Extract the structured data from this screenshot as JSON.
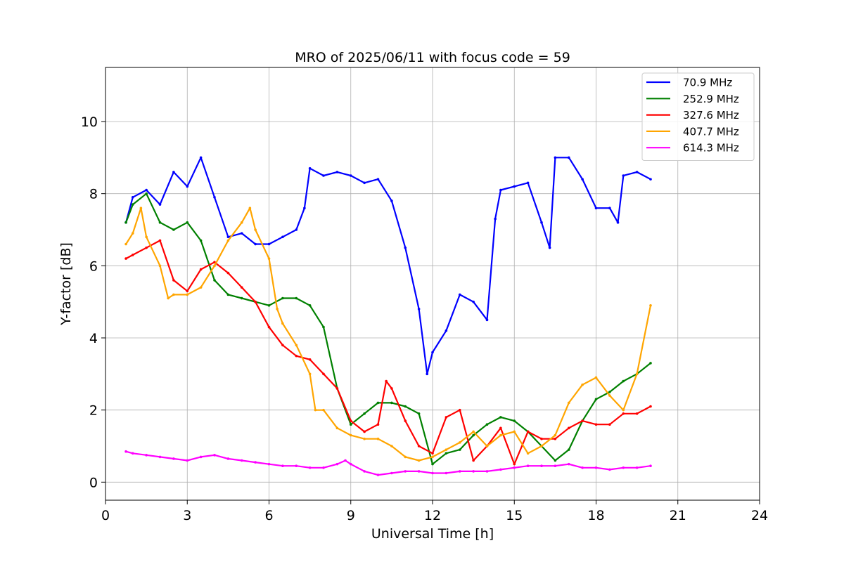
{
  "chart_data": {
    "type": "line",
    "title": "MRO of 2025/06/11 with focus code = 59",
    "xlabel": "Universal Time [h]",
    "ylabel": "Y-factor [dB]",
    "xlim": [
      0,
      24
    ],
    "ylim": [
      -0.5,
      11.5
    ],
    "xticks": [
      0,
      3,
      6,
      9,
      12,
      15,
      18,
      21,
      24
    ],
    "yticks": [
      0,
      2,
      4,
      6,
      8,
      10
    ],
    "grid": true,
    "legend_position": "top-right",
    "series": [
      {
        "name": " 70.9 MHz",
        "color": "#0000ff",
        "x": [
          0.75,
          1.0,
          1.5,
          2.0,
          2.5,
          3.0,
          3.5,
          4.0,
          4.5,
          5.0,
          5.5,
          6.0,
          6.5,
          7.0,
          7.3,
          7.5,
          8.0,
          8.5,
          9.0,
          9.5,
          10.0,
          10.5,
          11.0,
          11.5,
          11.8,
          12.0,
          12.5,
          13.0,
          13.5,
          14.0,
          14.3,
          14.5,
          15.0,
          15.5,
          16.0,
          16.3,
          16.5,
          17.0,
          17.5,
          18.0,
          18.5,
          18.8,
          19.0,
          19.5,
          20.0
        ],
        "values": [
          7.2,
          7.9,
          8.1,
          7.7,
          8.6,
          8.2,
          9.0,
          7.9,
          6.8,
          6.9,
          6.6,
          6.6,
          6.8,
          7.0,
          7.6,
          8.7,
          8.5,
          8.6,
          8.5,
          8.3,
          8.4,
          7.8,
          6.5,
          4.8,
          3.0,
          3.6,
          4.2,
          5.2,
          5.0,
          4.5,
          7.3,
          8.1,
          8.2,
          8.3,
          7.2,
          6.5,
          9.0,
          9.0,
          8.4,
          7.6,
          7.6,
          7.2,
          8.5,
          8.6,
          8.4
        ]
      },
      {
        "name": "252.9 MHz",
        "color": "#008000",
        "x": [
          0.75,
          1.0,
          1.5,
          2.0,
          2.5,
          3.0,
          3.5,
          4.0,
          4.5,
          5.0,
          5.5,
          6.0,
          6.5,
          7.0,
          7.5,
          8.0,
          8.5,
          9.0,
          9.5,
          10.0,
          10.5,
          11.0,
          11.5,
          12.0,
          12.5,
          13.0,
          13.5,
          14.0,
          14.5,
          15.0,
          15.5,
          16.0,
          16.5,
          17.0,
          17.5,
          18.0,
          18.5,
          19.0,
          19.5,
          20.0
        ],
        "values": [
          7.2,
          7.7,
          8.0,
          7.2,
          7.0,
          7.2,
          6.7,
          5.6,
          5.2,
          5.1,
          5.0,
          4.9,
          5.1,
          5.1,
          4.9,
          4.3,
          2.6,
          1.6,
          1.9,
          2.2,
          2.2,
          2.1,
          1.9,
          0.5,
          0.8,
          0.9,
          1.3,
          1.6,
          1.8,
          1.7,
          1.4,
          1.0,
          0.6,
          0.9,
          1.7,
          2.3,
          2.5,
          2.8,
          3.0,
          3.3
        ]
      },
      {
        "name": "327.6 MHz",
        "color": "#ff0000",
        "x": [
          0.75,
          1.0,
          1.5,
          2.0,
          2.5,
          3.0,
          3.5,
          4.0,
          4.5,
          5.0,
          5.5,
          6.0,
          6.5,
          7.0,
          7.5,
          8.0,
          8.5,
          9.0,
          9.5,
          10.0,
          10.3,
          10.5,
          11.0,
          11.5,
          12.0,
          12.5,
          13.0,
          13.5,
          14.0,
          14.5,
          15.0,
          15.5,
          16.0,
          16.5,
          17.0,
          17.5,
          18.0,
          18.5,
          19.0,
          19.5,
          20.0
        ],
        "values": [
          6.2,
          6.3,
          6.5,
          6.7,
          5.6,
          5.3,
          5.9,
          6.1,
          5.8,
          5.4,
          5.0,
          4.3,
          3.8,
          3.5,
          3.4,
          3.0,
          2.6,
          1.7,
          1.4,
          1.6,
          2.8,
          2.6,
          1.7,
          1.0,
          0.8,
          1.8,
          2.0,
          0.6,
          1.0,
          1.5,
          0.5,
          1.4,
          1.2,
          1.2,
          1.5,
          1.7,
          1.6,
          1.6,
          1.9,
          1.9,
          2.1
        ]
      },
      {
        "name": "407.7 MHz",
        "color": "#ffa500",
        "x": [
          0.75,
          1.0,
          1.3,
          1.5,
          2.0,
          2.3,
          2.5,
          3.0,
          3.5,
          4.0,
          4.5,
          5.0,
          5.3,
          5.5,
          6.0,
          6.3,
          6.5,
          7.0,
          7.5,
          7.7,
          8.0,
          8.5,
          9.0,
          9.5,
          10.0,
          10.5,
          11.0,
          11.5,
          12.0,
          12.5,
          13.0,
          13.5,
          14.0,
          14.5,
          15.0,
          15.5,
          16.0,
          16.5,
          17.0,
          17.5,
          18.0,
          18.5,
          19.0,
          19.5,
          20.0
        ],
        "values": [
          6.6,
          6.9,
          7.6,
          6.8,
          6.0,
          5.1,
          5.2,
          5.2,
          5.4,
          6.0,
          6.7,
          7.2,
          7.6,
          7.0,
          6.2,
          4.8,
          4.4,
          3.8,
          3.0,
          2.0,
          2.0,
          1.5,
          1.3,
          1.2,
          1.2,
          1.0,
          0.7,
          0.6,
          0.7,
          0.9,
          1.1,
          1.4,
          1.0,
          1.3,
          1.4,
          0.8,
          1.0,
          1.3,
          2.2,
          2.7,
          2.9,
          2.4,
          2.0,
          3.0,
          4.9
        ]
      },
      {
        "name": "614.3 MHz",
        "color": "#ff00ff",
        "x": [
          0.75,
          1.0,
          1.5,
          2.0,
          2.5,
          3.0,
          3.5,
          4.0,
          4.5,
          5.0,
          5.5,
          6.0,
          6.5,
          7.0,
          7.5,
          8.0,
          8.5,
          8.8,
          9.0,
          9.5,
          10.0,
          10.5,
          11.0,
          11.5,
          12.0,
          12.5,
          13.0,
          13.5,
          14.0,
          14.5,
          15.0,
          15.5,
          16.0,
          16.5,
          17.0,
          17.5,
          18.0,
          18.5,
          19.0,
          19.5,
          20.0
        ],
        "values": [
          0.85,
          0.8,
          0.75,
          0.7,
          0.65,
          0.6,
          0.7,
          0.75,
          0.65,
          0.6,
          0.55,
          0.5,
          0.45,
          0.45,
          0.4,
          0.4,
          0.5,
          0.6,
          0.5,
          0.3,
          0.2,
          0.25,
          0.3,
          0.3,
          0.25,
          0.25,
          0.3,
          0.3,
          0.3,
          0.35,
          0.4,
          0.45,
          0.45,
          0.45,
          0.5,
          0.4,
          0.4,
          0.35,
          0.4,
          0.4,
          0.45
        ]
      }
    ]
  }
}
